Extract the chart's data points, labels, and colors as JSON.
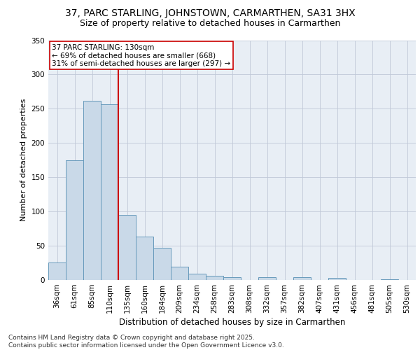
{
  "title1": "37, PARC STARLING, JOHNSTOWN, CARMARTHEN, SA31 3HX",
  "title2": "Size of property relative to detached houses in Carmarthen",
  "xlabel": "Distribution of detached houses by size in Carmarthen",
  "ylabel": "Number of detached properties",
  "categories": [
    "36sqm",
    "61sqm",
    "85sqm",
    "110sqm",
    "135sqm",
    "160sqm",
    "184sqm",
    "209sqm",
    "234sqm",
    "258sqm",
    "283sqm",
    "308sqm",
    "332sqm",
    "357sqm",
    "382sqm",
    "407sqm",
    "431sqm",
    "456sqm",
    "481sqm",
    "505sqm",
    "530sqm"
  ],
  "values": [
    26,
    175,
    262,
    256,
    95,
    63,
    47,
    19,
    9,
    6,
    4,
    0,
    4,
    0,
    4,
    0,
    3,
    0,
    0,
    1,
    0
  ],
  "bar_color": "#c9d9e8",
  "bar_edge_color": "#6699bb",
  "grid_color": "#c0c8d8",
  "bg_color": "#e8eef5",
  "vline_color": "#cc0000",
  "annotation_text": "37 PARC STARLING: 130sqm\n← 69% of detached houses are smaller (668)\n31% of semi-detached houses are larger (297) →",
  "annotation_box_color": "#ffffff",
  "annotation_box_edge": "#cc0000",
  "footnote": "Contains HM Land Registry data © Crown copyright and database right 2025.\nContains public sector information licensed under the Open Government Licence v3.0.",
  "ylim": [
    0,
    350
  ],
  "yticks": [
    0,
    50,
    100,
    150,
    200,
    250,
    300,
    350
  ],
  "title1_fontsize": 10,
  "title2_fontsize": 9,
  "xlabel_fontsize": 8.5,
  "ylabel_fontsize": 8,
  "tick_fontsize": 7.5,
  "annot_fontsize": 7.5,
  "footnote_fontsize": 6.5
}
